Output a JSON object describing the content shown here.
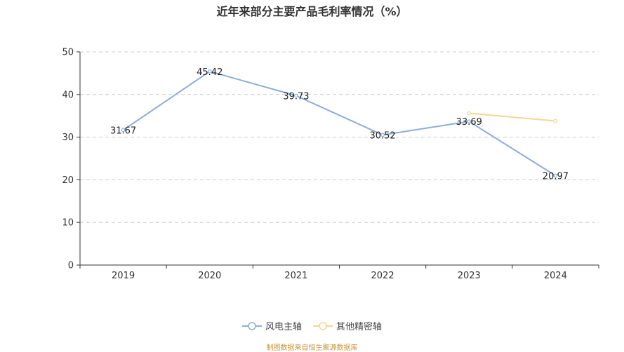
{
  "chart_data": {
    "type": "line",
    "title": "近年来部分主要产品毛利率情况（%）",
    "categories": [
      "2019",
      "2020",
      "2021",
      "2022",
      "2023",
      "2024"
    ],
    "ylim": [
      0,
      50
    ],
    "yticks": [
      0,
      10,
      20,
      30,
      40,
      50
    ],
    "grid": true,
    "legend_position": "bottom",
    "series": [
      {
        "name": "风电主轴",
        "color": "#8cadd9",
        "values": [
          31.67,
          45.42,
          39.73,
          30.52,
          33.69,
          20.97
        ],
        "labels": [
          "31.67",
          "45.42",
          "39.73",
          "30.52",
          "33.69",
          "20.97"
        ]
      },
      {
        "name": "其他精密轴",
        "color": "#f9d58f",
        "values": [
          null,
          null,
          null,
          null,
          35.6,
          33.8
        ],
        "labels": []
      }
    ]
  },
  "footer": {
    "source": "制图数据来自恒生聚源数据库"
  }
}
